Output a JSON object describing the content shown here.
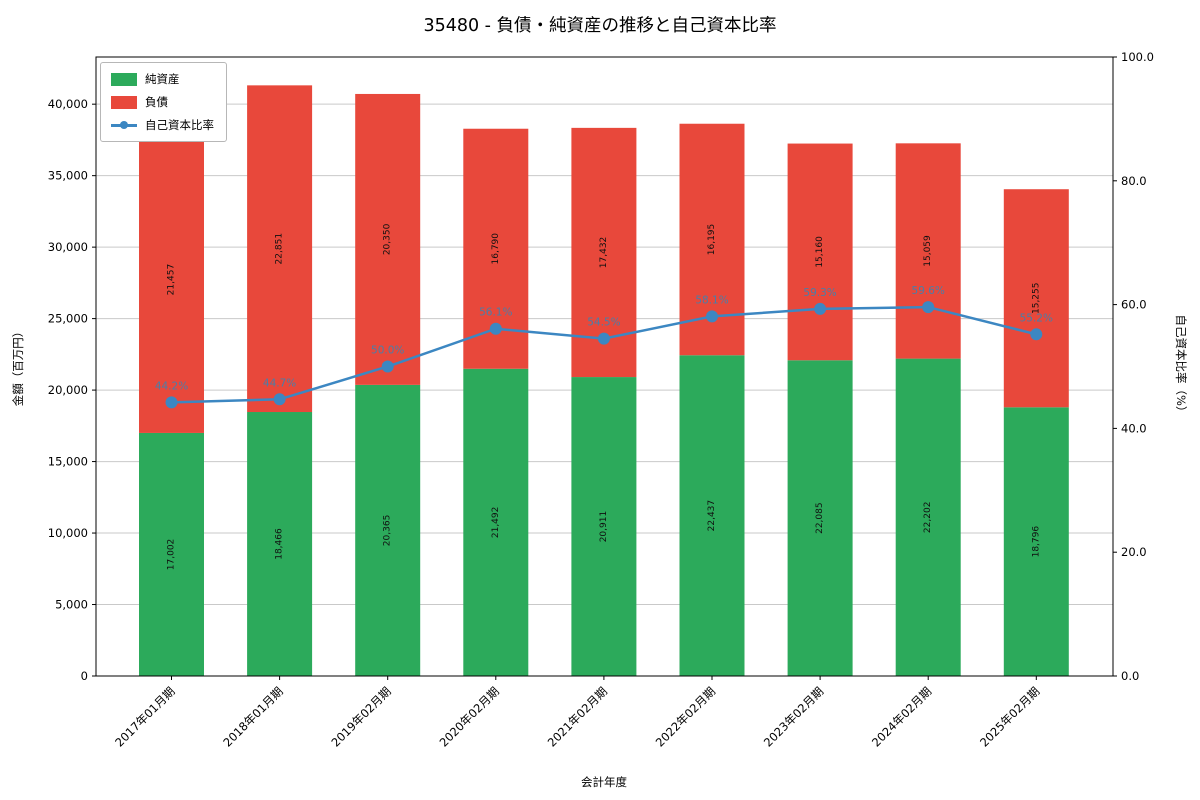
{
  "title": "35480 - 負債・純資産の推移と自己資本比率",
  "chart_data": {
    "type": "bar",
    "subtype": "stacked-bar-with-line",
    "categories": [
      "2017年01月期",
      "2018年01月期",
      "2019年02月期",
      "2020年02月期",
      "2021年02月期",
      "2022年02月期",
      "2023年02月期",
      "2024年02月期",
      "2025年02月期"
    ],
    "series": [
      {
        "name": "純資産",
        "color": "#2caa5b",
        "values": [
          17002,
          18466,
          20365,
          21492,
          20911,
          22437,
          22085,
          22202,
          18796
        ],
        "labels": [
          "17,002",
          "18,466",
          "20,365",
          "21,492",
          "20,911",
          "22,437",
          "22,085",
          "22,202",
          "18,796"
        ]
      },
      {
        "name": "負債",
        "color": "#e8483b",
        "values": [
          21457,
          22851,
          20350,
          16790,
          17432,
          16195,
          15160,
          15059,
          15255
        ],
        "labels": [
          "21,457",
          "22,851",
          "20,350",
          "16,790",
          "17,432",
          "16,195",
          "15,160",
          "15,059",
          "15,255"
        ]
      }
    ],
    "line": {
      "name": "自己資本比率",
      "color": "#3c87c2",
      "label_color": "#4a7ea8",
      "values": [
        44.2,
        44.7,
        50.0,
        56.1,
        54.5,
        58.1,
        59.3,
        59.6,
        55.2
      ],
      "labels": [
        "44.2%",
        "44.7%",
        "50.0%",
        "56.1%",
        "54.5%",
        "58.1%",
        "59.3%",
        "59.6%",
        "55.2%"
      ]
    },
    "xlabel": "会計年度",
    "ylabel_left": "金額（百万円）",
    "ylabel_right": "自己資本比率（%）",
    "ylim_left": [
      0,
      43300
    ],
    "ylim_right": [
      0,
      100
    ],
    "yticks_left": {
      "values": [
        0,
        5000,
        10000,
        15000,
        20000,
        25000,
        30000,
        35000,
        40000
      ],
      "labels": [
        "0",
        "5,000",
        "10,000",
        "15,000",
        "20,000",
        "25,000",
        "30,000",
        "35,000",
        "40,000"
      ]
    },
    "yticks_right": {
      "values": [
        0,
        20,
        40,
        60,
        80,
        100
      ],
      "labels": [
        "0.0",
        "20.0",
        "40.0",
        "60.0",
        "80.0",
        "100.0"
      ]
    },
    "legend": [
      "純資産",
      "負債",
      "自己資本比率"
    ],
    "legend_position": "upper left",
    "grid": true,
    "colors": {
      "grid": "#c9c9c9",
      "spine": "#000000",
      "bar_label": "#101010"
    }
  }
}
